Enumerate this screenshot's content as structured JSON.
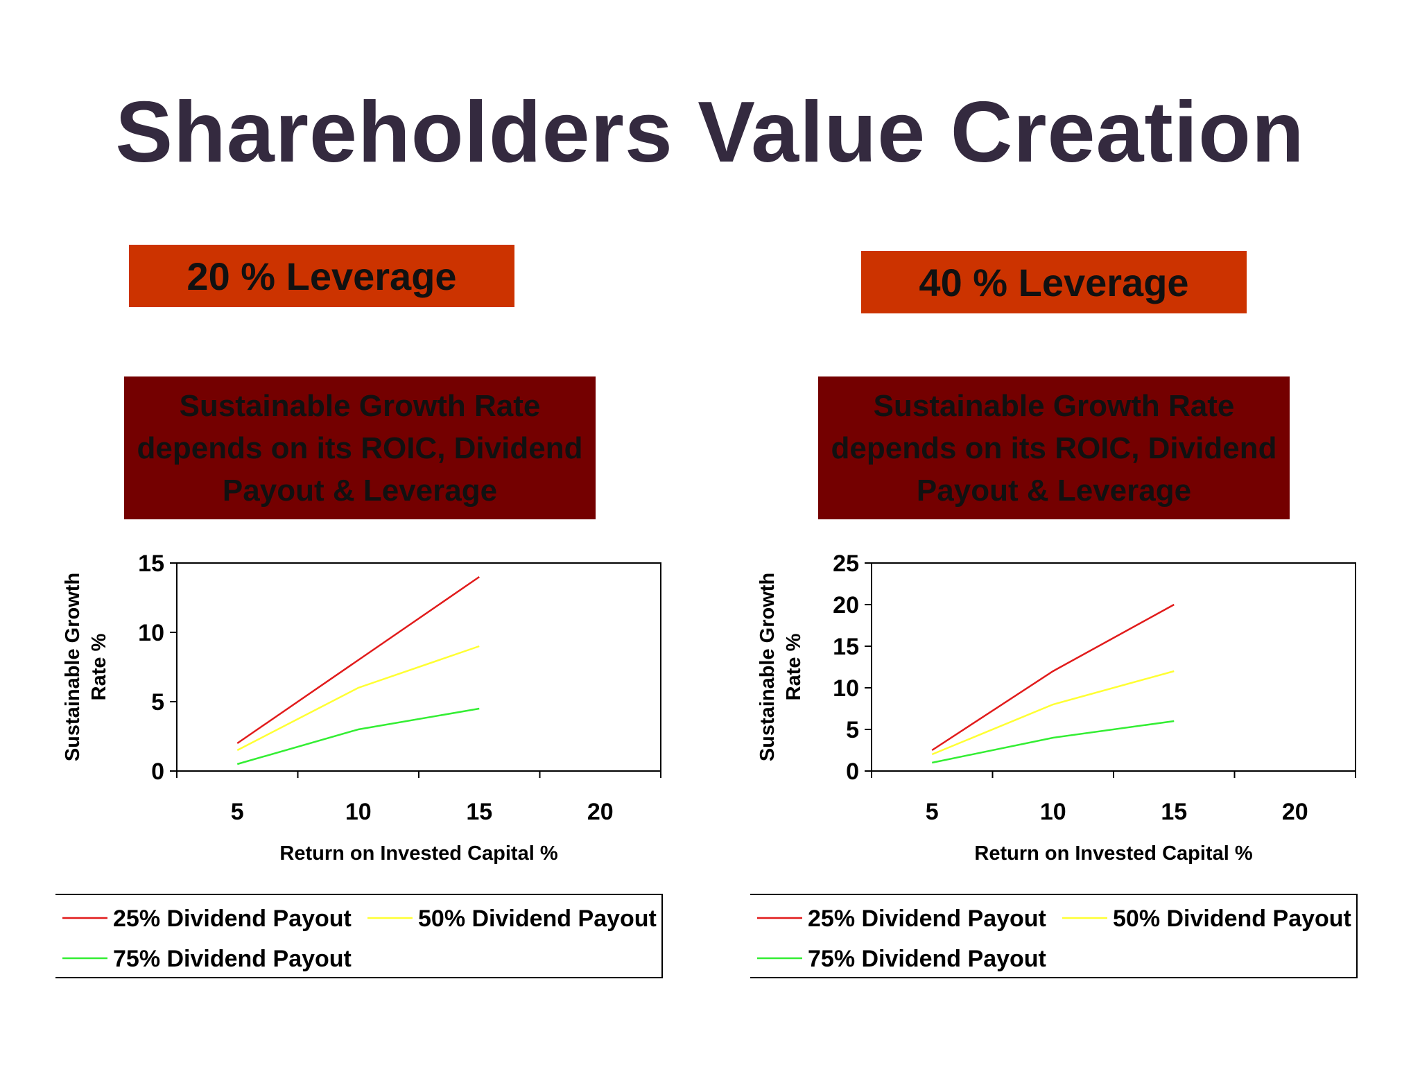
{
  "title": "Shareholders Value Creation",
  "colors": {
    "leverage_bg": "#cc3300",
    "subtitle_bg": "#740000",
    "title_text": "#342a3f",
    "series_25": "#e11b1b",
    "series_50": "#ffff33",
    "series_75": "#33ee33"
  },
  "leverage_labels": [
    "20 % Leverage",
    "40 % Leverage"
  ],
  "subtitle_lines": [
    "Sustainable Growth Rate",
    "depends on its ROIC, Dividend",
    "Payout & Leverage"
  ],
  "chart_data": [
    {
      "type": "line",
      "xlabel": "Return on Invested Capital %",
      "ylabel_lines": [
        "Sustainable Growth",
        "Rate %"
      ],
      "x": [
        5,
        10,
        15
      ],
      "xticks": [
        5,
        10,
        15,
        20
      ],
      "xlim": [
        2.5,
        22.5
      ],
      "yticks": [
        0,
        5,
        10,
        15
      ],
      "ylim": [
        0,
        15
      ],
      "grid": false,
      "legend_position": "bottom",
      "series": [
        {
          "name": "25% Dividend Payout",
          "color": "#e11b1b",
          "values": [
            2,
            8,
            14
          ]
        },
        {
          "name": "50% Dividend Payout",
          "color": "#ffff33",
          "values": [
            1.5,
            6,
            9
          ]
        },
        {
          "name": "75% Dividend Payout",
          "color": "#33ee33",
          "values": [
            0.5,
            3,
            4.5
          ]
        }
      ]
    },
    {
      "type": "line",
      "xlabel": "Return on Invested Capital %",
      "ylabel_lines": [
        "Sustainable Growth",
        "Rate %"
      ],
      "x": [
        5,
        10,
        15
      ],
      "xticks": [
        5,
        10,
        15,
        20
      ],
      "xlim": [
        2.5,
        22.5
      ],
      "yticks": [
        0,
        5,
        10,
        15,
        20,
        25
      ],
      "ylim": [
        0,
        25
      ],
      "grid": false,
      "legend_position": "bottom",
      "series": [
        {
          "name": "25% Dividend Payout",
          "color": "#e11b1b",
          "values": [
            2.5,
            12,
            20
          ]
        },
        {
          "name": "50% Dividend Payout",
          "color": "#ffff33",
          "values": [
            2,
            8,
            12
          ]
        },
        {
          "name": "75% Dividend Payout",
          "color": "#33ee33",
          "values": [
            1,
            4,
            6
          ]
        }
      ]
    }
  ]
}
